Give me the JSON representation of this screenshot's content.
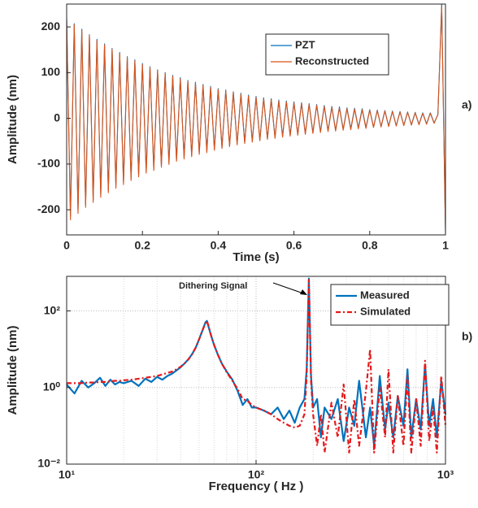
{
  "chart_data": [
    {
      "type": "line",
      "panel_label": "a)",
      "xlabel": "Time (s)",
      "ylabel": "Amplitude (nm)",
      "x": [
        0,
        0.01,
        0.02,
        0.03,
        0.04,
        0.05,
        0.06,
        0.07,
        0.08,
        0.09,
        0.1,
        0.11,
        0.12,
        0.13,
        0.14,
        0.15,
        0.16,
        0.17,
        0.18,
        0.19,
        0.2,
        0.21,
        0.22,
        0.23,
        0.24,
        0.25,
        0.26,
        0.27,
        0.28,
        0.29,
        0.3,
        0.31,
        0.32,
        0.33,
        0.34,
        0.35,
        0.36,
        0.37,
        0.38,
        0.39,
        0.4,
        0.41,
        0.42,
        0.43,
        0.44,
        0.45,
        0.46,
        0.47,
        0.48,
        0.49,
        0.5,
        0.51,
        0.52,
        0.53,
        0.54,
        0.55,
        0.56,
        0.57,
        0.58,
        0.59,
        0.6,
        0.61,
        0.62,
        0.63,
        0.64,
        0.65,
        0.66,
        0.67,
        0.68,
        0.69,
        0.7,
        0.71,
        0.72,
        0.73,
        0.74,
        0.75,
        0.76,
        0.77,
        0.78,
        0.79,
        0.8,
        0.81,
        0.82,
        0.83,
        0.84,
        0.85,
        0.86,
        0.87,
        0.88,
        0.89,
        0.9,
        0.91,
        0.92,
        0.93,
        0.94,
        0.95,
        0.96,
        0.97,
        0.98,
        0.99,
        1
      ],
      "series": [
        {
          "name": "PZT",
          "color": "#0072bd",
          "values": [
            220,
            -213,
            207,
            -201,
            195,
            -189,
            183,
            -178,
            173,
            -168,
            163,
            -158,
            153,
            -148,
            144,
            -140,
            135,
            -131,
            128,
            -124,
            120,
            -116,
            113,
            -110,
            106,
            -103,
            100,
            -97,
            94,
            -91,
            89,
            -86,
            83,
            -81,
            79,
            -76,
            74,
            -72,
            70,
            -67,
            65,
            -64,
            62,
            -60,
            58,
            -56,
            55,
            -53,
            51,
            -50,
            48,
            -47,
            45,
            -44,
            43,
            -42,
            40,
            -39,
            38,
            -37,
            36,
            -35,
            34,
            -33,
            32,
            -31,
            30,
            -29,
            28,
            -27,
            26,
            -26,
            25,
            -24,
            23,
            -23,
            22,
            -21,
            21,
            -20,
            19,
            -19,
            18,
            -18,
            17,
            -17,
            16,
            -16,
            15,
            -15,
            14,
            -14,
            13,
            -13,
            12,
            -12,
            12,
            -10,
            8,
            250,
            -245
          ]
        },
        {
          "name": "Reconstructed",
          "color": "#d95319",
          "values": [
            215,
            -222,
            205,
            -208,
            193,
            -195,
            181,
            -184,
            171,
            -173,
            161,
            -163,
            151,
            -153,
            142,
            -145,
            133,
            -136,
            126,
            -128,
            118,
            -120,
            111,
            -114,
            104,
            -107,
            98,
            -101,
            92,
            -94,
            87,
            -89,
            81,
            -84,
            77,
            -79,
            72,
            -75,
            68,
            -70,
            63,
            -66,
            60,
            -62,
            56,
            -58,
            53,
            -55,
            49,
            -52,
            46,
            -49,
            43,
            -46,
            41,
            -44,
            38,
            -41,
            36,
            -39,
            34,
            -37,
            32,
            -35,
            30,
            -33,
            28,
            -31,
            26,
            -29,
            24,
            -28,
            23,
            -26,
            21,
            -25,
            20,
            -23,
            19,
            -22,
            18,
            -20,
            17,
            -19,
            16,
            -18,
            15,
            -17,
            14,
            -16,
            13,
            -15,
            12,
            -14,
            11,
            -13,
            11,
            -11,
            9,
            245,
            -250
          ]
        }
      ],
      "xlim": [
        0,
        1
      ],
      "ylim": [
        -255,
        250
      ],
      "xticks": [
        0,
        0.2,
        0.4,
        0.6,
        0.8,
        1
      ],
      "yticks": [
        -200,
        -100,
        0,
        100,
        200
      ],
      "grid": false,
      "legend": "upper right"
    },
    {
      "type": "line",
      "panel_label": "b)",
      "xlabel": "Frequency ( Hz )",
      "ylabel": "Amplitude (nm)",
      "annotation": "Dithering Signal",
      "xscale": "log",
      "yscale": "log",
      "x": [
        10,
        11,
        12,
        13,
        14,
        15,
        16,
        17,
        18,
        19,
        20,
        22,
        24,
        26,
        28,
        30,
        32,
        34,
        36,
        38,
        40,
        42,
        44,
        46,
        48,
        50,
        52,
        54,
        55,
        56,
        58,
        60,
        63,
        66,
        70,
        75,
        80,
        85,
        90,
        95,
        100,
        110,
        120,
        130,
        140,
        150,
        160,
        170,
        180,
        185,
        190,
        195,
        200,
        210,
        220,
        230,
        250,
        270,
        290,
        310,
        330,
        350,
        380,
        400,
        420,
        450,
        480,
        500,
        530,
        560,
        600,
        630,
        660,
        700,
        740,
        780,
        820,
        860,
        900,
        950,
        1000
      ],
      "series": [
        {
          "name": "Measured",
          "color": "#0072bd",
          "style": "solid",
          "values": [
            1.2,
            0.7,
            1.5,
            1.0,
            1.3,
            1.8,
            1.1,
            1.6,
            1.2,
            1.4,
            1.3,
            1.5,
            1.1,
            1.7,
            1.4,
            1.9,
            1.6,
            2.0,
            2.3,
            2.8,
            3.4,
            4.3,
            5.5,
            7.5,
            11,
            18,
            30,
            50,
            55,
            40,
            22,
            13,
            7,
            4.2,
            2.6,
            1.6,
            0.8,
            0.35,
            0.5,
            0.3,
            0.3,
            0.25,
            0.2,
            0.3,
            0.15,
            0.25,
            0.12,
            0.3,
            0.5,
            3,
            700,
            2,
            0.3,
            0.5,
            0.05,
            0.3,
            0.15,
            0.5,
            0.04,
            0.3,
            0.1,
            1.5,
            0.05,
            0.3,
            0.03,
            2,
            0.08,
            0.4,
            0.05,
            0.6,
            0.1,
            3,
            0.05,
            0.5,
            0.08,
            4,
            0.1,
            0.5,
            0.05,
            1.5,
            0.2
          ]
        },
        {
          "name": "Simulated",
          "color": "#e41a1c",
          "style": "dashed",
          "values": [
            1.3,
            1.3,
            1.3,
            1.35,
            1.35,
            1.4,
            1.4,
            1.45,
            1.5,
            1.5,
            1.55,
            1.6,
            1.7,
            1.8,
            1.9,
            2.0,
            2.2,
            2.4,
            2.6,
            3.0,
            3.5,
            4.3,
            5.5,
            7.5,
            11,
            18,
            30,
            48,
            55,
            42,
            22,
            13,
            7,
            4.2,
            2.5,
            1.5,
            0.9,
            0.5,
            0.45,
            0.35,
            0.3,
            0.25,
            0.2,
            0.15,
            0.12,
            0.1,
            0.09,
            0.1,
            0.2,
            2,
            650,
            1.5,
            0.2,
            0.03,
            0.2,
            0.02,
            0.4,
            0.05,
            1.2,
            0.02,
            0.5,
            0.03,
            0.8,
            10,
            0.02,
            1,
            0.05,
            3,
            0.02,
            0.6,
            0.03,
            2,
            0.02,
            0.5,
            0.03,
            5,
            0.04,
            0.3,
            0.02,
            2,
            0.1
          ]
        }
      ],
      "xlim": [
        10,
        1000
      ],
      "ylim": [
        0.01,
        800
      ],
      "xticks": [
        {
          "value": 10,
          "label": "10¹"
        },
        {
          "value": 100,
          "label": "10²"
        },
        {
          "value": 1000,
          "label": "10³"
        }
      ],
      "yticks": [
        {
          "value": 0.01,
          "label": "10⁻²"
        },
        {
          "value": 1,
          "label": "10⁰"
        },
        {
          "value": 100,
          "label": "10²"
        }
      ],
      "grid": true,
      "legend": "upper right"
    }
  ]
}
